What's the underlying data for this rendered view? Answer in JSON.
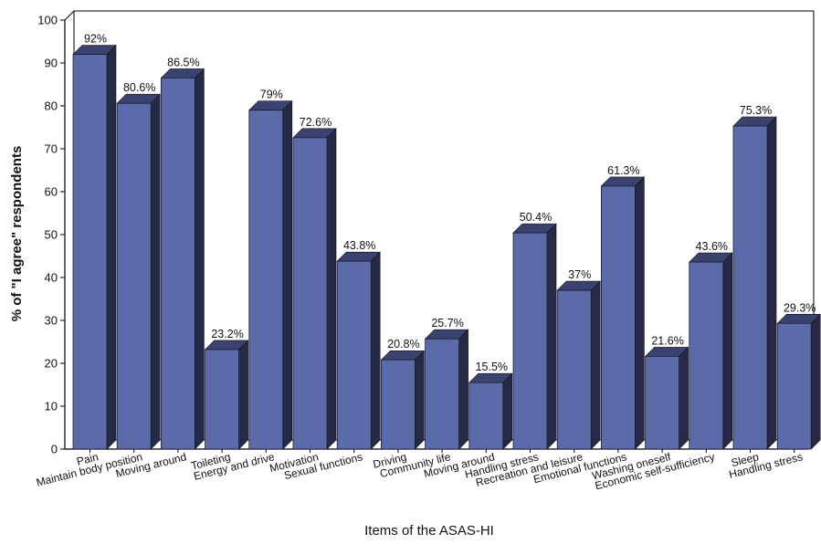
{
  "chart_data": {
    "type": "bar",
    "style": "3d-column",
    "categories": [
      "Pain",
      "Maintain body position",
      "Moving around",
      "Toileting",
      "Energy and drive",
      "Motivation",
      "Sexual functions",
      "Driving",
      "Community life",
      "Moving around",
      "Handling stress",
      "Recreation and leisure",
      "Emotional functions",
      "Washing oneself",
      "Economic self-sufficiency",
      "Sleep",
      "Handling stress"
    ],
    "values": [
      92,
      80.6,
      86.5,
      23.2,
      79,
      72.6,
      43.8,
      20.8,
      25.7,
      15.5,
      50.4,
      37,
      61.3,
      21.6,
      43.6,
      75.3,
      29.3
    ],
    "data_labels": [
      "92%",
      "80.6%",
      "86.5%",
      "23.2%",
      "79%",
      "72.6%",
      "43.8%",
      "20.8%",
      "25.7%",
      "15.5%",
      "50.4%",
      "37%",
      "61.3%",
      "21.6%",
      "43.6%",
      "75.3%",
      "29.3%"
    ],
    "xlabel": "Items of the ASAS-HI",
    "ylabel": "% of \"I agree\" respondents",
    "ylim": [
      0,
      100
    ],
    "yticks": [
      0,
      10,
      20,
      30,
      40,
      50,
      60,
      70,
      80,
      90,
      100
    ],
    "grid": false,
    "legend": "none",
    "colors": {
      "bar_front": "#5b6aa8",
      "bar_side": "#262a45",
      "bar_top": "#3a4270",
      "axis": "#000000"
    }
  }
}
